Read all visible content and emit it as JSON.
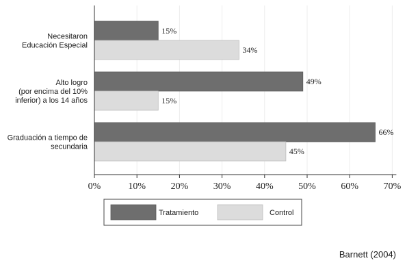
{
  "chart_data": {
    "type": "bar",
    "orientation": "horizontal",
    "categories": [
      [
        "Necesitaron",
        "Educación Especial"
      ],
      [
        "Alto logro",
        "(por encima del 10%",
        "inferior) a los 14 años"
      ],
      [
        "Graduación a tiempo de",
        "secundaria"
      ]
    ],
    "series": [
      {
        "name": "Tratamiento",
        "values": [
          15,
          49,
          66
        ],
        "labels": [
          "15%",
          "49%",
          "66%"
        ],
        "color": "#6e6e6e"
      },
      {
        "name": "Control",
        "values": [
          34,
          15,
          45
        ],
        "labels": [
          "34%",
          "15%",
          "45%"
        ],
        "color": "#dcdcdc"
      }
    ],
    "xlim": [
      0,
      70
    ],
    "xticks": [
      {
        "value": 0,
        "label": "0%"
      },
      {
        "value": 10,
        "label": "10%"
      },
      {
        "value": 20,
        "label": "20%"
      },
      {
        "value": 30,
        "label": "30%"
      },
      {
        "value": 40,
        "label": "40%"
      },
      {
        "value": 50,
        "label": "50%"
      },
      {
        "value": 60,
        "label": "60%"
      },
      {
        "value": 70,
        "label": "70%"
      }
    ],
    "grid": true,
    "legend_position": "bottom",
    "title": "",
    "xlabel": "",
    "ylabel": ""
  },
  "source": "Barnett  (2004)"
}
